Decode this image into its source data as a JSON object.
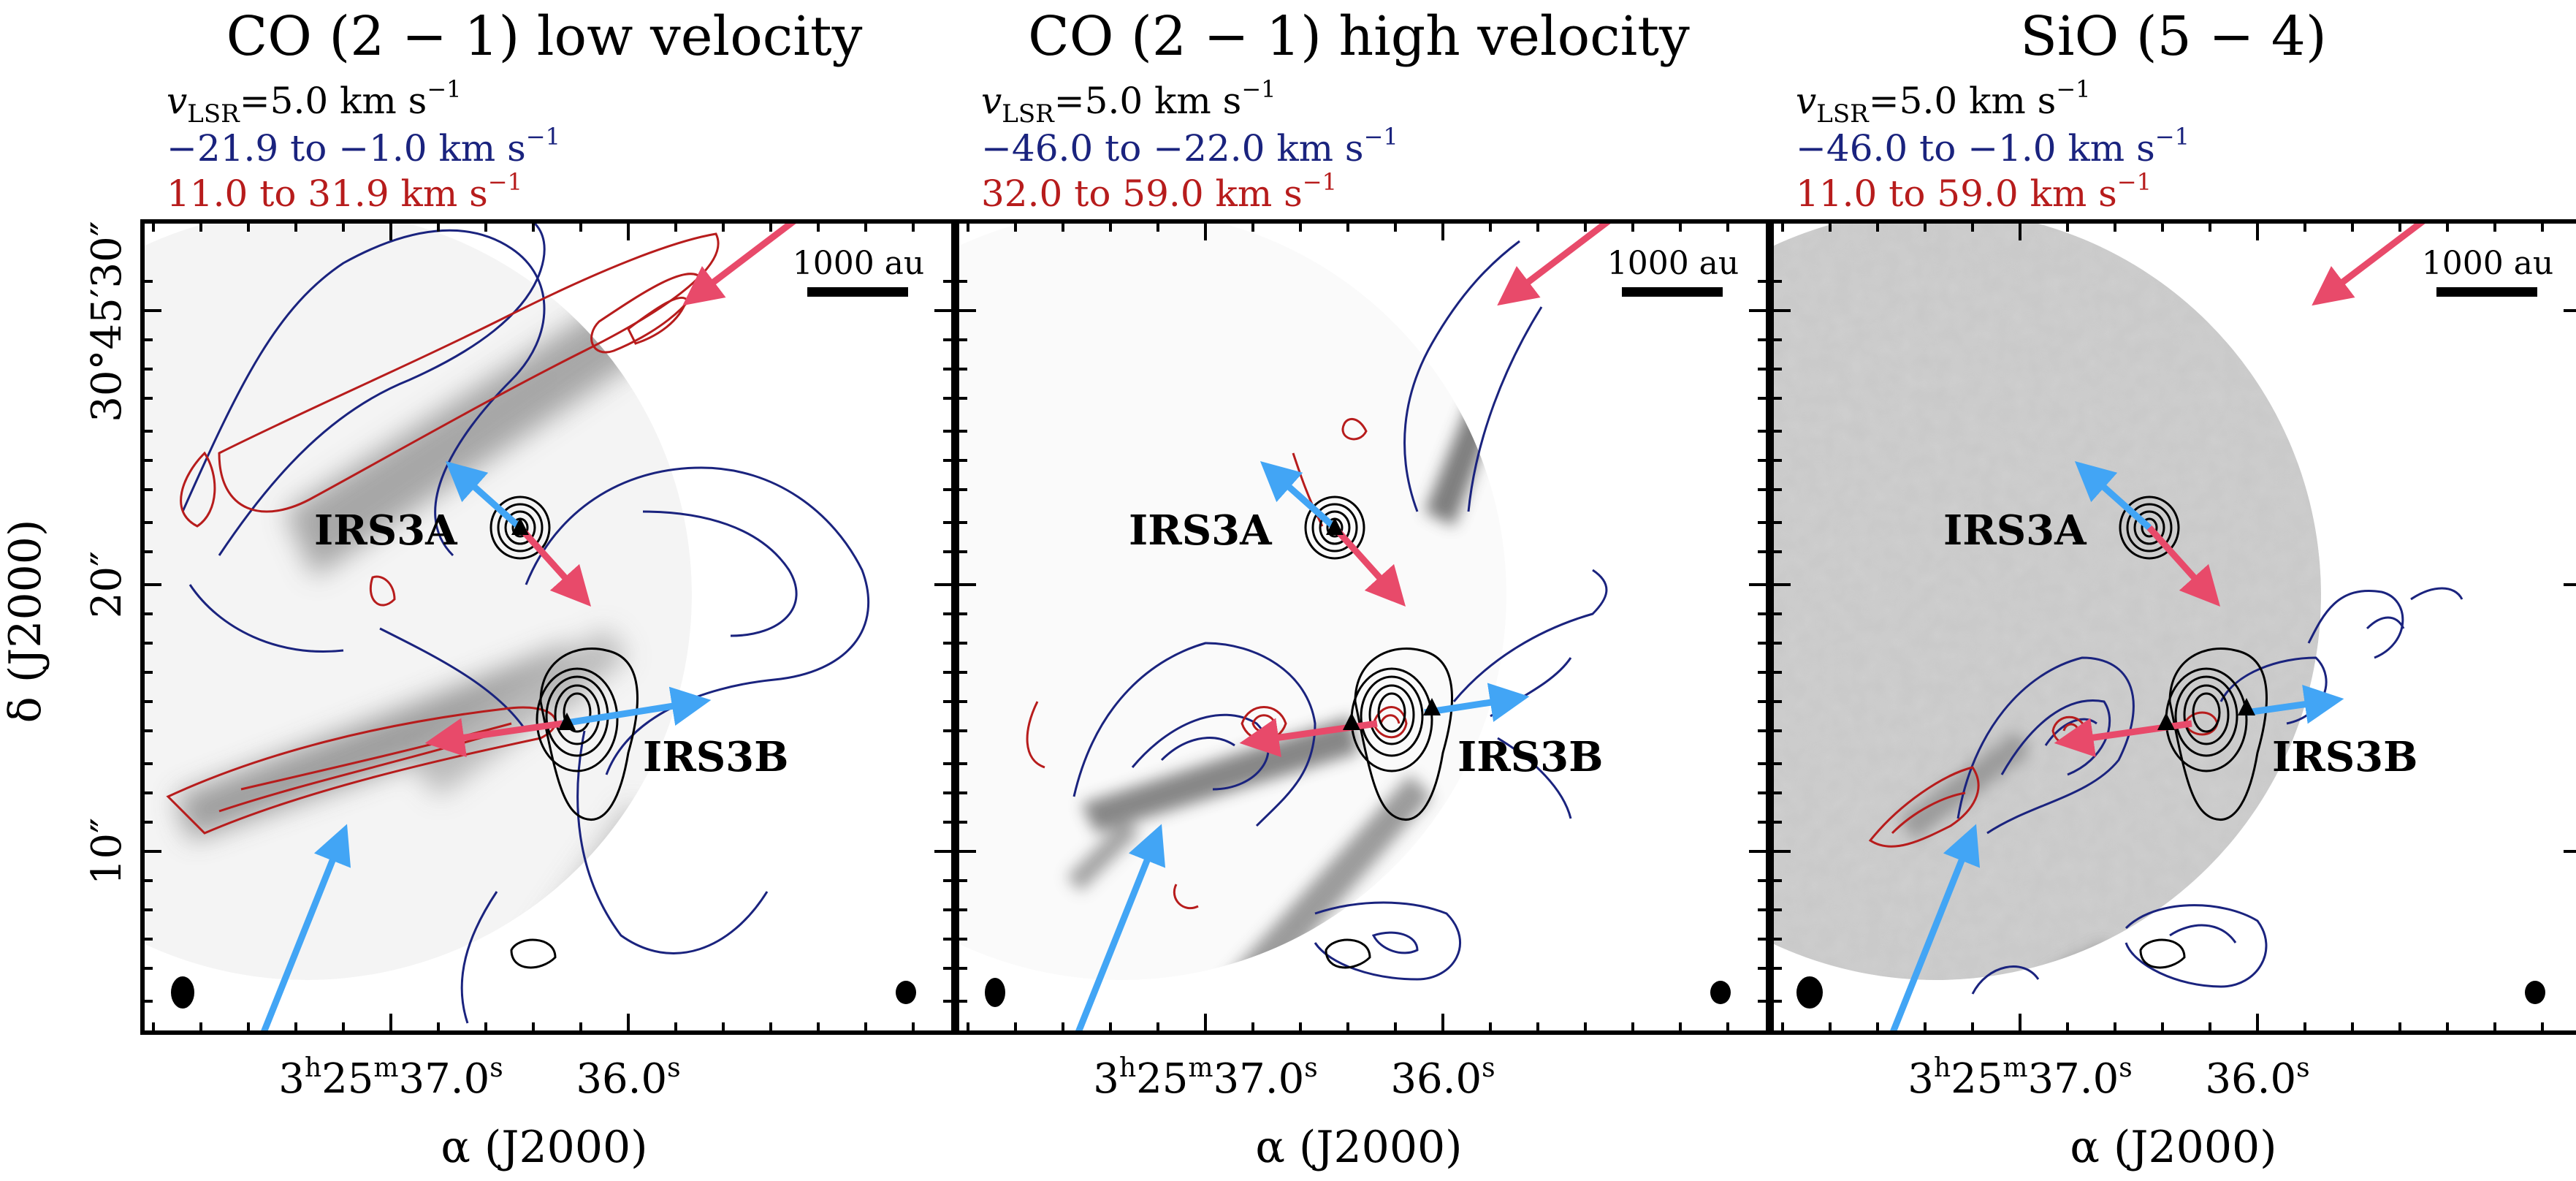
{
  "figure": {
    "ra_axis_label": "α (J2000)",
    "dec_axis_label": "δ (J2000)",
    "ra_ticks": [
      {
        "h": "3",
        "m": "25",
        "s": "37.0"
      },
      {
        "h": "",
        "m": "",
        "s": "36.0"
      }
    ],
    "dec_ticks": [
      "30°45′30″",
      "20″",
      "10″"
    ],
    "colors": {
      "blue_contour": "#1a237e",
      "red_contour": "#b71c1c",
      "blue_arrow": "#42a5f5",
      "red_arrow": "#e84a6a",
      "black_contour": "#000000"
    }
  },
  "panels": [
    {
      "title": "CO (2 − 1) low velocity",
      "vlsr": "v",
      "vlsr_sub": "LSR",
      "vlsr_val": "=5.0 km s",
      "unit_exp": "−1",
      "blue_range": "−21.9 to −1.0 km s",
      "red_range": "11.0 to 31.9 km s",
      "scalebar": "1000 au",
      "sources": [
        "IRS3A",
        "IRS3B"
      ],
      "background": "grayscale CO(2-1) intensity"
    },
    {
      "title": "CO (2 − 1) high velocity",
      "vlsr": "v",
      "vlsr_sub": "LSR",
      "vlsr_val": "=5.0 km s",
      "unit_exp": "−1",
      "blue_range": "−46.0 to −22.0 km s",
      "red_range": "32.0 to 59.0 km s",
      "scalebar": "1000 au",
      "sources": [
        "IRS3A",
        "IRS3B"
      ],
      "background": "grayscale CO(2-1) intensity"
    },
    {
      "title": "SiO (5 − 4)",
      "vlsr": "v",
      "vlsr_sub": "LSR",
      "vlsr_val": "=5.0 km s",
      "unit_exp": "−1",
      "blue_range": "−46.0 to −1.0 km s",
      "red_range": "11.0 to 59.0 km s",
      "scalebar": "1000 au",
      "sources": [
        "IRS3A",
        "IRS3B"
      ],
      "background": "grayscale SiO(5-4) intensity"
    }
  ]
}
